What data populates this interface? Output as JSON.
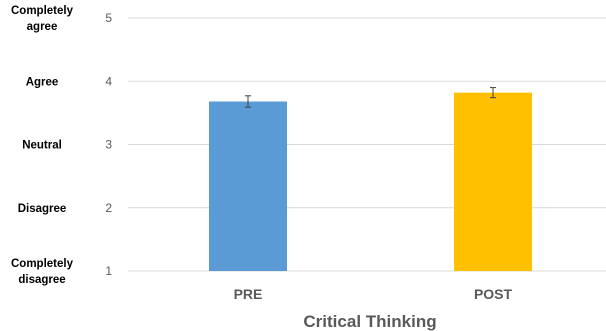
{
  "chart_data": {
    "type": "bar",
    "categories": [
      "PRE",
      "POST"
    ],
    "values": [
      3.68,
      3.82
    ],
    "errors": [
      0.09,
      0.08
    ],
    "colors": [
      "#5b9bd5",
      "#ffc000"
    ],
    "xlabel": "Critical Thinking",
    "ylim": [
      1,
      5
    ],
    "yticks": [
      "1",
      "2",
      "3",
      "4",
      "5"
    ],
    "ytick_values": [
      1,
      2,
      3,
      4,
      5
    ],
    "likert_labels": [
      {
        "value": 5,
        "lines": [
          "Completely",
          "agree"
        ]
      },
      {
        "value": 4,
        "lines": [
          "Agree"
        ]
      },
      {
        "value": 3,
        "lines": [
          "Neutral"
        ]
      },
      {
        "value": 2,
        "lines": [
          "Disagree"
        ]
      },
      {
        "value": 1,
        "lines": [
          "Completely",
          "disagree"
        ]
      }
    ],
    "grid": true
  }
}
